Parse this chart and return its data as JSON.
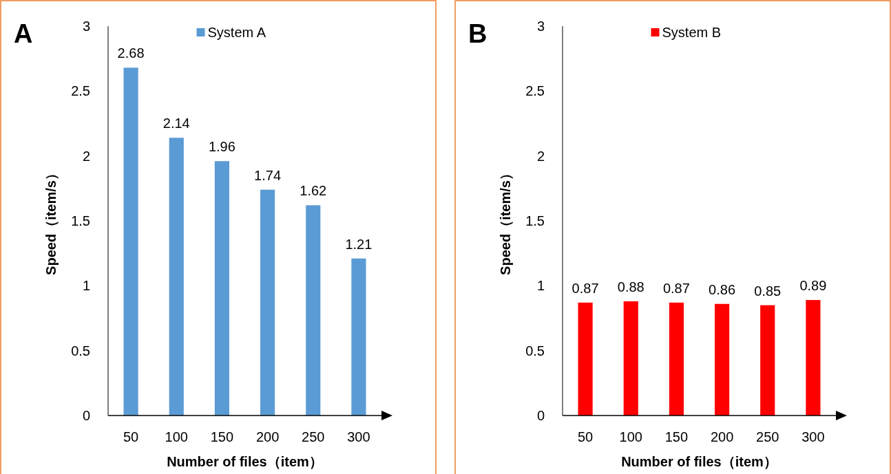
{
  "chart_data": [
    {
      "type": "bar",
      "annotations": [
        "A"
      ],
      "xlabel": "Number of files（item）",
      "ylabel": "Speed（item/s）",
      "categories": [
        "50",
        "100",
        "150",
        "200",
        "250",
        "300"
      ],
      "series": [
        {
          "name": "System A",
          "color": "#5b9bd5",
          "values": [
            2.68,
            2.14,
            1.96,
            1.74,
            1.62,
            1.21
          ]
        }
      ],
      "ylim": [
        0,
        3
      ],
      "yticks": [
        0,
        0.5,
        1,
        1.5,
        2,
        2.5,
        3
      ],
      "data_labels": true,
      "legend": "top"
    },
    {
      "type": "bar",
      "annotations": [
        "B"
      ],
      "xlabel": "Number of files（item）",
      "ylabel": "Speed（item/s）",
      "categories": [
        "50",
        "100",
        "150",
        "200",
        "250",
        "300"
      ],
      "series": [
        {
          "name": "System B",
          "color": "#ff0000",
          "values": [
            0.87,
            0.88,
            0.87,
            0.86,
            0.85,
            0.89
          ]
        }
      ],
      "ylim": [
        0,
        3
      ],
      "yticks": [
        0,
        0.5,
        1,
        1.5,
        2,
        2.5,
        3
      ],
      "data_labels": true,
      "legend": "top"
    }
  ]
}
